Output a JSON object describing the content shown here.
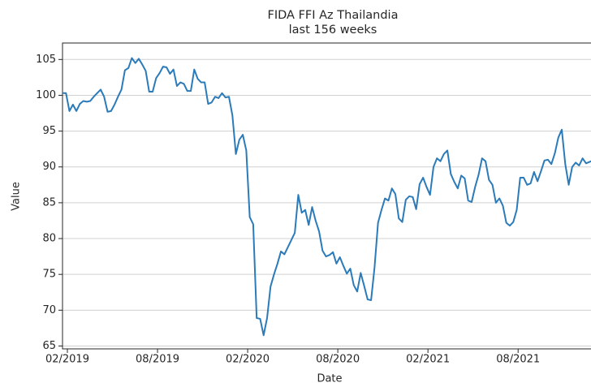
{
  "chart_data": {
    "type": "line",
    "title": "FIDA FFI Az Thailandia",
    "subtitle": "last 156 weeks",
    "x_label": "Date",
    "y_label": "Value",
    "color": "#2b7bba",
    "grid": true,
    "values": [
      100.3,
      100.3,
      97.8,
      98.7,
      97.8,
      98.8,
      99.2,
      99.1,
      99.2,
      99.8,
      100.3,
      100.8,
      99.8,
      97.7,
      97.8,
      98.7,
      99.8,
      100.8,
      103.5,
      103.8,
      105.2,
      104.5,
      105.1,
      104.3,
      103.4,
      100.5,
      100.5,
      102.4,
      103.1,
      104.0,
      103.9,
      103.0,
      103.6,
      101.3,
      101.8,
      101.6,
      100.6,
      100.6,
      103.6,
      102.3,
      101.8,
      101.8,
      98.8,
      99.0,
      99.8,
      99.6,
      100.3,
      99.7,
      99.8,
      97.2,
      91.8,
      93.8,
      94.5,
      92.3,
      83.0,
      82.0,
      68.9,
      68.8,
      66.5,
      68.9,
      73.3,
      75.0,
      76.5,
      78.2,
      77.8,
      78.8,
      79.8,
      80.8,
      86.1,
      83.6,
      84.0,
      81.9,
      84.4,
      82.5,
      81.0,
      78.3,
      77.5,
      77.7,
      78.1,
      76.5,
      77.4,
      76.2,
      75.1,
      75.8,
      73.5,
      72.6,
      75.2,
      73.4,
      71.5,
      71.4,
      76.0,
      82.2,
      84.0,
      85.6,
      85.3,
      87.0,
      86.2,
      82.8,
      82.3,
      85.4,
      85.9,
      85.8,
      84.1,
      87.6,
      88.5,
      87.2,
      86.1,
      90.0,
      91.2,
      90.8,
      91.8,
      92.3,
      89.0,
      87.9,
      87.0,
      88.8,
      88.4,
      85.3,
      85.1,
      87.2,
      88.9,
      91.2,
      90.8,
      88.2,
      87.5,
      85.0,
      85.6,
      84.6,
      82.2,
      81.8,
      82.3,
      84.0,
      88.5,
      88.5,
      87.5,
      87.7,
      89.3,
      88.0,
      89.4,
      90.9,
      91.0,
      90.4,
      91.9,
      94.1,
      95.2,
      90.4,
      87.5,
      90.0,
      90.6,
      90.2,
      91.2,
      90.5,
      90.7,
      90.9,
      91.7,
      92.0
    ],
    "xlim": [
      0,
      155
    ],
    "xticks": [
      {
        "value": 1.4,
        "label": "02/2019"
      },
      {
        "value": 27.4,
        "label": "08/2019"
      },
      {
        "value": 53.4,
        "label": "02/2020"
      },
      {
        "value": 79.4,
        "label": "08/2020"
      },
      {
        "value": 105.4,
        "label": "02/2021"
      },
      {
        "value": 131.4,
        "label": "08/2021"
      }
    ],
    "ylim": [
      64.6,
      107.3
    ],
    "yticks": [
      65,
      70,
      75,
      80,
      85,
      90,
      95,
      100,
      105
    ]
  }
}
